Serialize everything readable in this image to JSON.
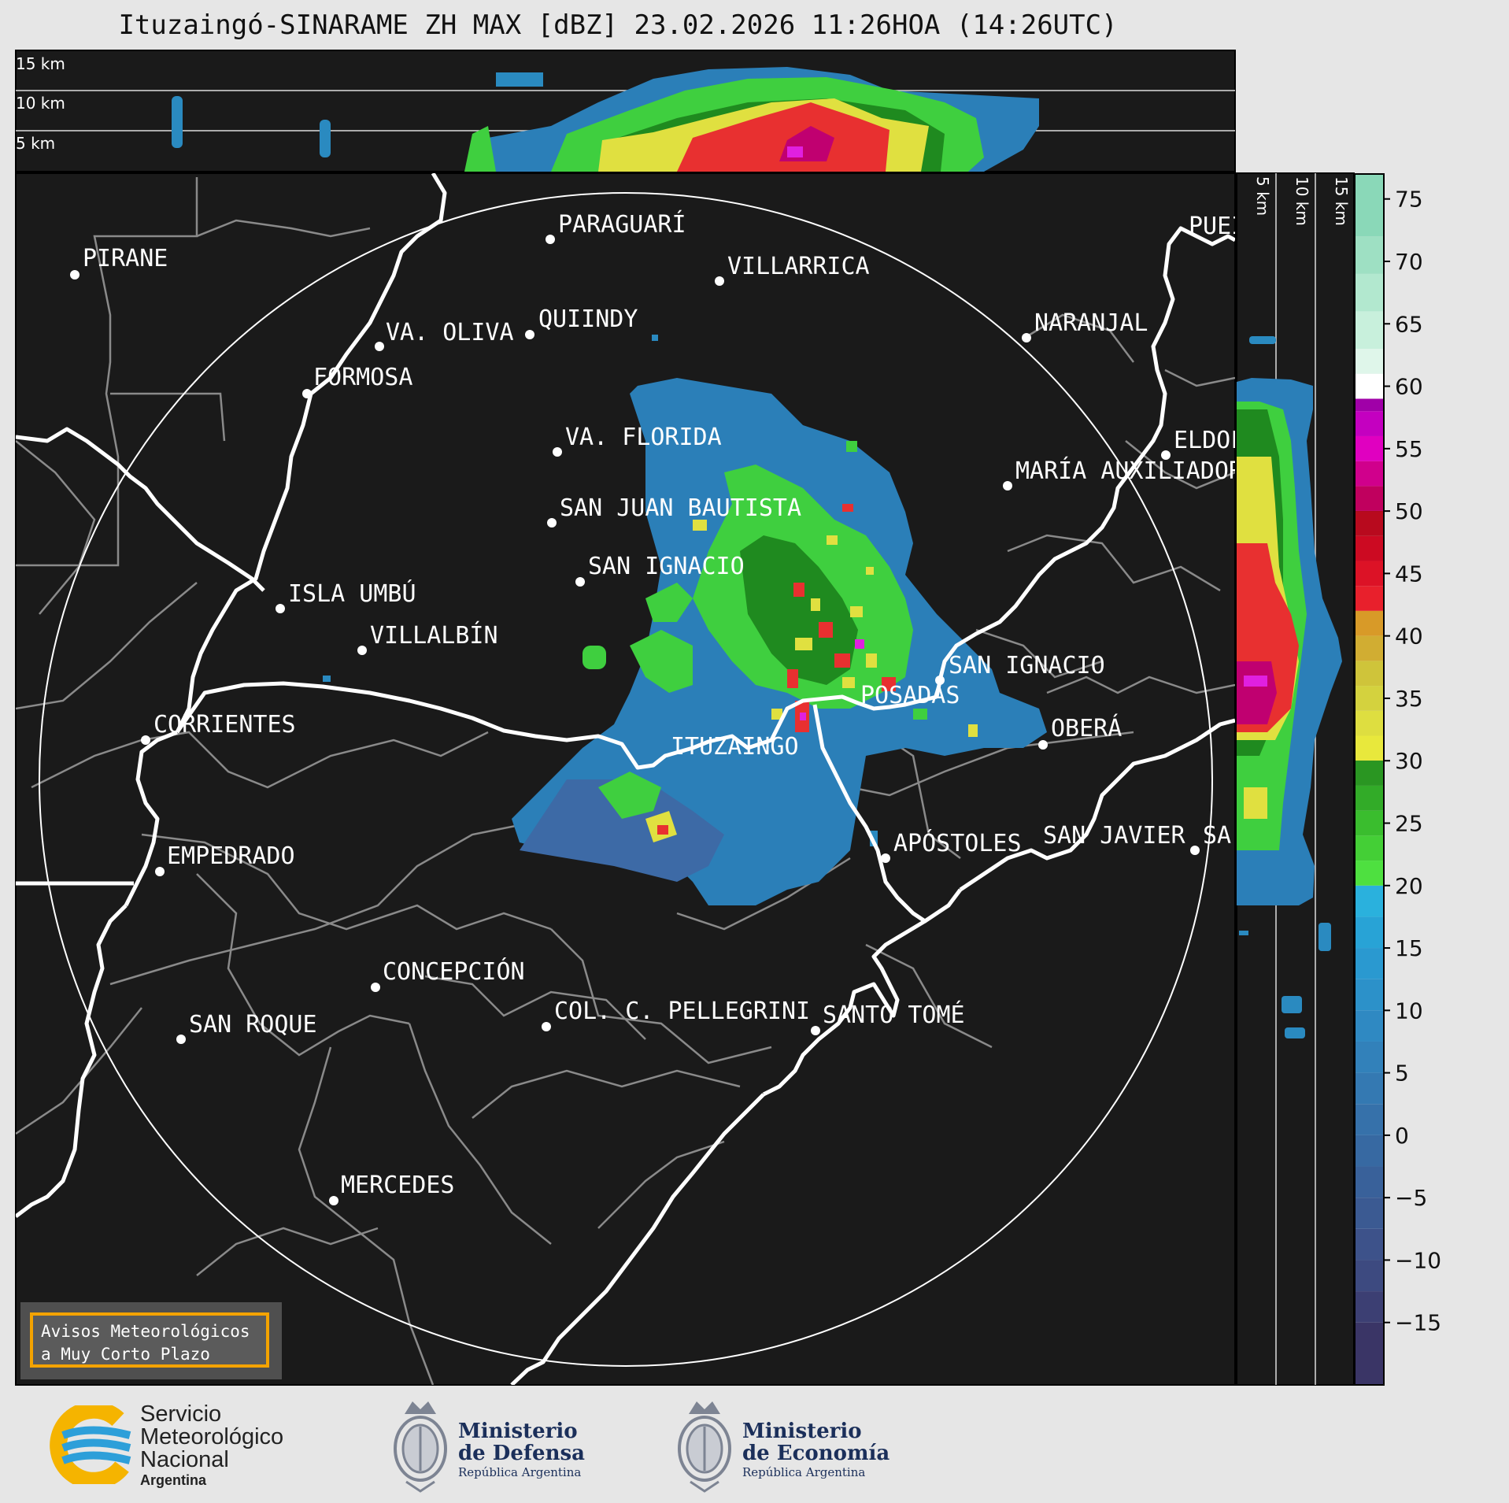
{
  "title": "Ituzaingó-SINARAME ZH MAX [dBZ] 23.02.2026 11:26HOA (14:26UTC)",
  "top_panel": {
    "altitude_labels": [
      "15 km",
      "10 km",
      "5 km"
    ]
  },
  "side_panel": {
    "altitude_labels": [
      "5 km",
      "10 km",
      "15 km"
    ]
  },
  "colorbar": {
    "ticks": [
      "75",
      "70",
      "65",
      "60",
      "55",
      "50",
      "45",
      "40",
      "35",
      "30",
      "25",
      "20",
      "15",
      "10",
      "5",
      "0",
      "−5",
      "−10",
      "−15"
    ],
    "range": [
      -20,
      77
    ]
  },
  "map_labels": [
    "PIRANE",
    "PARAGUARÍ",
    "VILLARRICA",
    "VA. OLIVA",
    "QUIINDY",
    "NARANJAL",
    "FORMOSA",
    "VA. FLORIDA",
    "ELDOF",
    "MARÍA AUXILIADOR",
    "SAN JUAN BAUTISTA",
    "SAN IGNACIO",
    "ISLA UMBÚ",
    "VILLALBÍN",
    "SAN IGNACIO",
    "POSADAS",
    "CORRIENTES",
    "ITUZAINGO",
    "OBERÁ",
    "EMPEDRADO",
    "APÓSTOLES",
    "SAN JAVIER",
    "SA",
    "CONCEPCIÓN",
    "COL. C. PELLEGRINI",
    "SANTO TOMÉ",
    "SAN ROQUE",
    "MERCEDES",
    "PUEI"
  ],
  "aviso": {
    "line1": "Avisos Meteorológicos",
    "line2": "a Muy Corto Plazo"
  },
  "logos": {
    "smn": {
      "line1": "Servicio",
      "line2": "Meteorológico",
      "line3": "Nacional",
      "line4": "Argentina"
    },
    "defensa": {
      "line1": "Ministerio",
      "line2": "de Defensa",
      "line3": "República Argentina"
    },
    "economia": {
      "line1": "Ministerio",
      "line2": "de Economía",
      "line3": "República Argentina"
    }
  },
  "colors": {
    "map_bg": "#1a1a1a",
    "rivers": "#ffffff",
    "borders": "#8a8a8a",
    "aviso_border": "#f4a300"
  }
}
